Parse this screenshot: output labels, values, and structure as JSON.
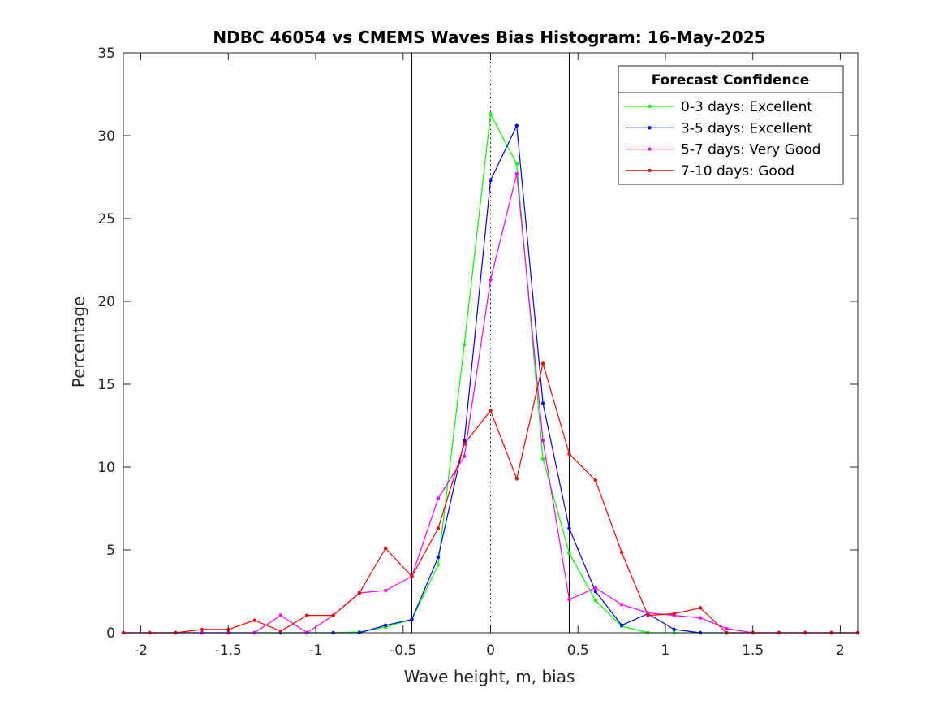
{
  "chart_data": {
    "type": "line",
    "title": "NDBC 46054 vs CMEMS Waves Bias Histogram: 16-May-2025",
    "xlabel": "Wave height, m, bias",
    "ylabel": "Percentage",
    "xlim": [
      -2.1,
      2.1
    ],
    "ylim": [
      0,
      35
    ],
    "xticks": [
      -2,
      -1.5,
      -1,
      -0.5,
      0,
      0.5,
      1,
      1.5,
      2
    ],
    "xtick_labels": [
      "-2",
      "-1.5",
      "-1",
      "-0.5",
      "0",
      "0.5",
      "1",
      "1.5",
      "2"
    ],
    "yticks": [
      0,
      5,
      10,
      15,
      20,
      25,
      30,
      35
    ],
    "ytick_labels": [
      "0",
      "5",
      "10",
      "15",
      "20",
      "25",
      "30",
      "35"
    ],
    "grid": false,
    "reference_lines": [
      {
        "x": -0.45,
        "style": "solid"
      },
      {
        "x": 0,
        "style": "dotted"
      },
      {
        "x": 0.45,
        "style": "solid"
      }
    ],
    "legend": {
      "title": "Forecast Confidence",
      "placement": "top-right"
    },
    "x": [
      -2.1,
      -1.95,
      -1.8,
      -1.65,
      -1.5,
      -1.35,
      -1.2,
      -1.05,
      -0.9,
      -0.75,
      -0.6,
      -0.45,
      -0.3,
      -0.15,
      0,
      0.15,
      0.3,
      0.45,
      0.6,
      0.75,
      0.9,
      1.05,
      1.2,
      1.35,
      1.5,
      1.65,
      1.8,
      1.95,
      2.1
    ],
    "series": [
      {
        "name": "0-3 days: Excellent",
        "color": "#00ff00",
        "values": [
          0,
          0,
          0,
          0,
          0,
          0,
          0,
          0,
          0,
          0.05,
          0.35,
          0.8,
          4.1,
          17.4,
          31.3,
          28.3,
          10.5,
          4.8,
          1.95,
          0.4,
          0,
          0,
          0,
          0,
          0,
          0,
          0,
          0,
          0
        ]
      },
      {
        "name": "3-5 days: Excellent",
        "color": "#0000ff",
        "values": [
          0,
          0,
          0,
          0,
          0,
          0,
          0,
          0,
          0,
          0,
          0.45,
          0.8,
          4.55,
          11.6,
          27.3,
          30.6,
          13.85,
          6.3,
          2.5,
          0.45,
          1.15,
          0.2,
          0,
          0,
          0,
          0,
          0,
          0,
          0
        ]
      },
      {
        "name": "5-7 days: Very Good",
        "color": "#ff00ff",
        "values": [
          0,
          0,
          0,
          0,
          0,
          0,
          1.05,
          0,
          1.05,
          2.4,
          2.55,
          3.4,
          8.1,
          10.65,
          21.3,
          27.7,
          11.6,
          2.0,
          2.7,
          1.7,
          1.2,
          1.05,
          0.9,
          0.25,
          0,
          0,
          0,
          0,
          0
        ]
      },
      {
        "name": "7-10 days: Good",
        "color": "#ff0000",
        "values": [
          0,
          0,
          0,
          0.2,
          0.2,
          0.75,
          0.1,
          1.05,
          1.05,
          2.4,
          5.1,
          3.4,
          6.3,
          11.4,
          13.4,
          9.3,
          16.25,
          10.8,
          9.2,
          4.85,
          1.05,
          1.15,
          1.5,
          0,
          0,
          0,
          0,
          0,
          0
        ]
      }
    ]
  }
}
